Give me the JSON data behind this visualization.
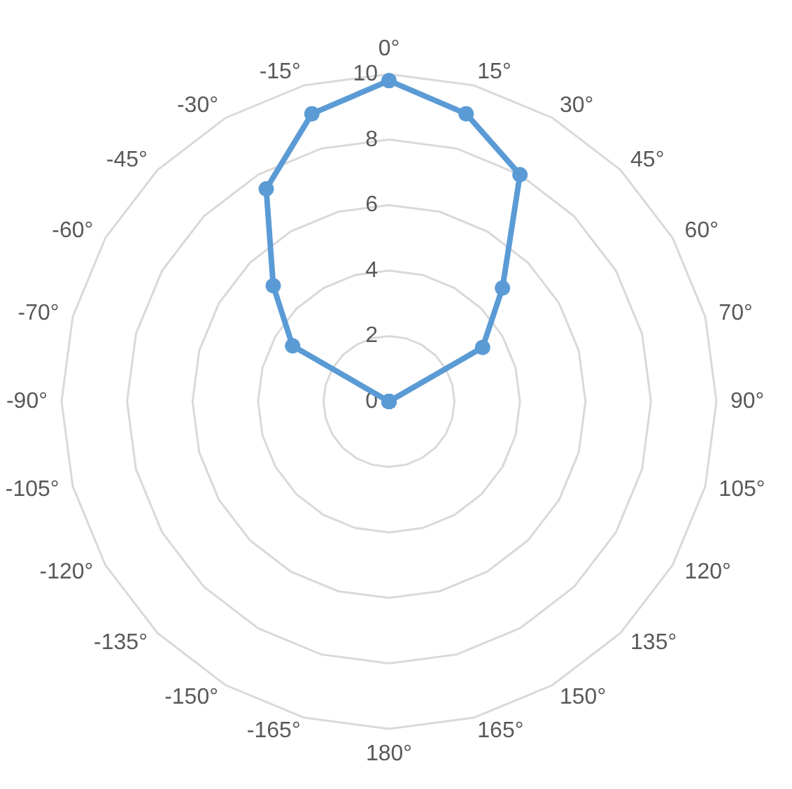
{
  "chart_data": {
    "type": "radar",
    "categories": [
      "0°",
      "15°",
      "30°",
      "45°",
      "60°",
      "70°",
      "90°",
      "105°",
      "120°",
      "135°",
      "150°",
      "165°",
      "180°",
      "-165°",
      "-150°",
      "-135°",
      "-120°",
      "-105°",
      "-90°",
      "-70°",
      "-60°",
      "-45°",
      "-30°",
      "-15°"
    ],
    "series": [
      {
        "color": "#5b9bd5",
        "values": [
          9.8,
          9.1,
          8.0,
          4.9,
          3.3,
          0,
          0,
          0,
          0,
          0,
          0,
          0,
          0,
          0,
          0,
          0,
          0,
          0,
          0,
          0,
          3.4,
          5.0,
          7.5,
          9.1
        ]
      }
    ],
    "ylim": [
      0,
      10
    ],
    "yticks": [
      0,
      2,
      4,
      6,
      8,
      10
    ],
    "grid": true,
    "marker": "circle",
    "line_style": "solid"
  }
}
